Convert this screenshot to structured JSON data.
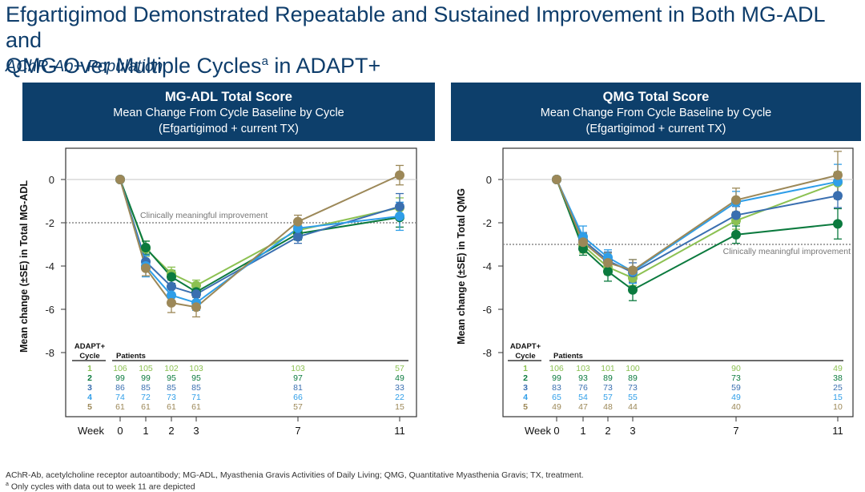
{
  "title": {
    "line1": "Efgartigimod Demonstrated Repeatable and Sustained Improvement in Both MG-ADL and",
    "line2_pre": "QMG Over Multiple Cycles",
    "line2_sup": "a",
    "line2_post": " in ADAPT+"
  },
  "subtitle": "AChR-Ab+ Population",
  "colors": {
    "header_bg": "#0d3f6b",
    "title": "#0e3d6b",
    "cycle1": "#8cc152",
    "cycle2": "#0b7a3e",
    "cycle3": "#3a6fb0",
    "cycle4": "#2f9ee8",
    "cycle5": "#9c8858"
  },
  "footnotes": {
    "abbrev": "AChR-Ab, acetylcholine receptor autoantibody; MG-ADL, Myasthenia Gravis Activities of Daily Living; QMG, Quantitative Myasthenia Gravis; TX, treatment.",
    "note_marker": "a",
    "note": " Only cycles with data out to week 11 are depicted"
  },
  "chart_data": [
    {
      "type": "line",
      "title": "MG-ADL Total Score",
      "subtitle": "Mean Change From Cycle Baseline by Cycle",
      "subtitle2": "(Efgartigimod + current TX)",
      "xlabel": "Week",
      "ylabel": "Mean change (±SE) in Total MG-ADL",
      "x": [
        0,
        1,
        2,
        3,
        7,
        11
      ],
      "ylim": [
        -8,
        1.5
      ],
      "yticks": [
        0,
        -2,
        -4,
        -6,
        -8
      ],
      "reference_line": {
        "value": -2,
        "label": "Clinically meaningful improvement",
        "label_position": "above-left"
      },
      "series": [
        {
          "name": "1",
          "color_key": "cycle1",
          "values": [
            0,
            -3.2,
            -4.35,
            -4.9,
            -2.35,
            -1.3
          ],
          "se": [
            0,
            0.35,
            0.3,
            0.25,
            0.3,
            0.45
          ]
        },
        {
          "name": "2",
          "color_key": "cycle2",
          "values": [
            0,
            -3.15,
            -4.5,
            -5.2,
            -2.5,
            -1.75
          ],
          "se": [
            0,
            0.3,
            0.3,
            0.25,
            0.3,
            0.45
          ]
        },
        {
          "name": "3",
          "color_key": "cycle3",
          "values": [
            0,
            -3.8,
            -4.95,
            -5.3,
            -2.65,
            -1.25
          ],
          "se": [
            0,
            0.3,
            0.3,
            0.3,
            0.3,
            0.6
          ]
        },
        {
          "name": "4",
          "color_key": "cycle4",
          "values": [
            0,
            -4.0,
            -5.35,
            -5.7,
            -2.25,
            -1.7
          ],
          "se": [
            0,
            0.5,
            0.35,
            0.35,
            0.35,
            0.65
          ]
        },
        {
          "name": "5",
          "color_key": "cycle5",
          "values": [
            0,
            -4.1,
            -5.7,
            -5.9,
            -1.95,
            0.2
          ],
          "se": [
            0,
            0.35,
            0.45,
            0.45,
            0.3,
            0.45
          ]
        }
      ],
      "patients_table": {
        "header_cycle": [
          "ADAPT+",
          "Cycle"
        ],
        "header_patients": "Patients",
        "rows": [
          {
            "cycle": "1",
            "color_key": "cycle1",
            "counts": [
              "106",
              "105",
              "102",
              "103",
              "103",
              "57"
            ]
          },
          {
            "cycle": "2",
            "color_key": "cycle2",
            "counts": [
              "99",
              "99",
              "95",
              "95",
              "97",
              "49"
            ]
          },
          {
            "cycle": "3",
            "color_key": "cycle3",
            "counts": [
              "86",
              "85",
              "85",
              "85",
              "81",
              "33"
            ]
          },
          {
            "cycle": "4",
            "color_key": "cycle4",
            "counts": [
              "74",
              "72",
              "73",
              "71",
              "66",
              "22"
            ]
          },
          {
            "cycle": "5",
            "color_key": "cycle5",
            "counts": [
              "61",
              "61",
              "61",
              "61",
              "57",
              "15"
            ]
          }
        ]
      }
    },
    {
      "type": "line",
      "title": "QMG Total Score",
      "subtitle": "Mean Change From Cycle Baseline by Cycle",
      "subtitle2": "(Efgartigimod + current TX)",
      "xlabel": "Week",
      "ylabel": "Mean change (±SE) in Total QMG",
      "x": [
        0,
        1,
        2,
        3,
        7,
        11
      ],
      "ylim": [
        -8,
        1.5
      ],
      "yticks": [
        0,
        -2,
        -4,
        -6,
        -8
      ],
      "reference_line": {
        "value": -3,
        "label": "Clinically meaningful improvement",
        "label_position": "below-right"
      },
      "series": [
        {
          "name": "1",
          "color_key": "cycle1",
          "values": [
            0,
            -3.05,
            -4.05,
            -4.55,
            -1.9,
            -0.15
          ],
          "se": [
            0,
            0.35,
            0.35,
            0.35,
            0.4,
            0.5
          ]
        },
        {
          "name": "2",
          "color_key": "cycle2",
          "values": [
            0,
            -3.2,
            -4.25,
            -5.1,
            -2.55,
            -2.05
          ],
          "se": [
            0,
            0.3,
            0.45,
            0.5,
            0.4,
            0.7
          ]
        },
        {
          "name": "3",
          "color_key": "cycle3",
          "values": [
            0,
            -2.8,
            -3.75,
            -4.3,
            -1.65,
            -0.75
          ],
          "se": [
            0,
            0.35,
            0.4,
            0.45,
            0.4,
            0.55
          ]
        },
        {
          "name": "4",
          "color_key": "cycle4",
          "values": [
            0,
            -2.65,
            -3.6,
            -4.25,
            -1.05,
            -0.1
          ],
          "se": [
            0,
            0.5,
            0.35,
            0.55,
            0.5,
            0.8
          ]
        },
        {
          "name": "5",
          "color_key": "cycle5",
          "values": [
            0,
            -2.9,
            -3.85,
            -4.2,
            -0.95,
            0.2
          ],
          "se": [
            0,
            0.4,
            0.45,
            0.5,
            0.55,
            1.1
          ]
        }
      ],
      "patients_table": {
        "header_cycle": [
          "ADAPT+",
          "Cycle"
        ],
        "header_patients": "Patients",
        "rows": [
          {
            "cycle": "1",
            "color_key": "cycle1",
            "counts": [
              "106",
              "103",
              "101",
              "100",
              "90",
              "49"
            ]
          },
          {
            "cycle": "2",
            "color_key": "cycle2",
            "counts": [
              "99",
              "93",
              "89",
              "89",
              "73",
              "38"
            ]
          },
          {
            "cycle": "3",
            "color_key": "cycle3",
            "counts": [
              "83",
              "76",
              "73",
              "73",
              "59",
              "25"
            ]
          },
          {
            "cycle": "4",
            "color_key": "cycle4",
            "counts": [
              "65",
              "54",
              "57",
              "55",
              "49",
              "15"
            ]
          },
          {
            "cycle": "5",
            "color_key": "cycle5",
            "counts": [
              "49",
              "47",
              "48",
              "44",
              "40",
              "10"
            ]
          }
        ]
      }
    }
  ]
}
